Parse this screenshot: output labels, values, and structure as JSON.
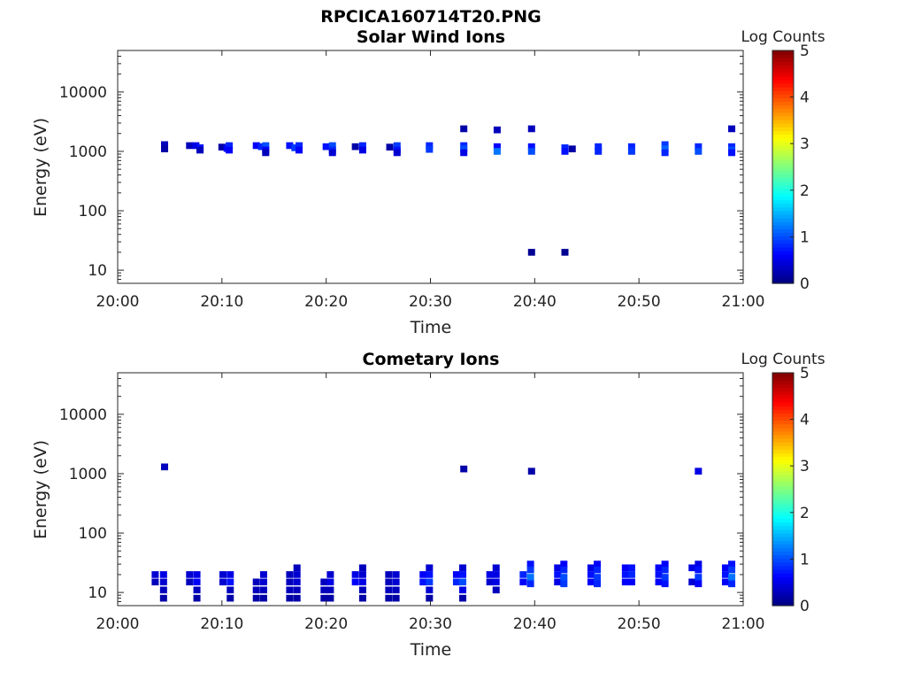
{
  "figure_title": "RPCICA160714T20.PNG",
  "colormap": [
    "#00007f",
    "#0000ff",
    "#007fff",
    "#00ffff",
    "#7fff7f",
    "#ffff00",
    "#ff7f00",
    "#ff0000",
    "#7f0000"
  ],
  "chart_data": [
    {
      "type": "heatmap",
      "title": "Solar Wind Ions",
      "xlabel": "Time",
      "ylabel": "Energy (eV)",
      "x_ticks": [
        "20:00",
        "20:10",
        "20:20",
        "20:30",
        "20:40",
        "20:50",
        "21:00"
      ],
      "y_ticks": [
        "10",
        "100",
        "1000",
        "10000"
      ],
      "y_scale": "log",
      "ylim": [
        6,
        50000
      ],
      "xlim_minutes": [
        0,
        60
      ],
      "grid": false,
      "colorbar": {
        "label": "Log Counts",
        "ticks": [
          "0",
          "1",
          "2",
          "3",
          "4",
          "5"
        ],
        "range": [
          0,
          5
        ]
      },
      "cells": [
        {
          "t": 4.5,
          "e": 1300,
          "v": 0.3
        },
        {
          "t": 4.5,
          "e": 1100,
          "v": 0.2
        },
        {
          "t": 6.9,
          "e": 1250,
          "v": 0.3
        },
        {
          "t": 7.5,
          "e": 1250,
          "v": 0.5
        },
        {
          "t": 7.9,
          "e": 1150,
          "v": 0.7
        },
        {
          "t": 7.9,
          "e": 1050,
          "v": 0.3
        },
        {
          "t": 10.0,
          "e": 1180,
          "v": 0.2
        },
        {
          "t": 10.5,
          "e": 1120,
          "v": 0.6
        },
        {
          "t": 10.7,
          "e": 1250,
          "v": 0.8
        },
        {
          "t": 10.7,
          "e": 1050,
          "v": 0.6
        },
        {
          "t": 13.3,
          "e": 1250,
          "v": 0.6
        },
        {
          "t": 13.8,
          "e": 1200,
          "v": 0.8
        },
        {
          "t": 14.2,
          "e": 1250,
          "v": 1.0
        },
        {
          "t": 14.2,
          "e": 1050,
          "v": 0.6
        },
        {
          "t": 14.2,
          "e": 950,
          "v": 0.3
        },
        {
          "t": 16.5,
          "e": 1250,
          "v": 0.7
        },
        {
          "t": 17.0,
          "e": 1150,
          "v": 0.9
        },
        {
          "t": 17.4,
          "e": 1250,
          "v": 0.8
        },
        {
          "t": 17.4,
          "e": 1050,
          "v": 0.6
        },
        {
          "t": 20.0,
          "e": 1200,
          "v": 0.7
        },
        {
          "t": 20.6,
          "e": 1250,
          "v": 1.0
        },
        {
          "t": 20.6,
          "e": 1050,
          "v": 0.8
        },
        {
          "t": 20.6,
          "e": 950,
          "v": 0.4
        },
        {
          "t": 22.8,
          "e": 1200,
          "v": 0.2
        },
        {
          "t": 23.5,
          "e": 1250,
          "v": 0.8
        },
        {
          "t": 23.5,
          "e": 1050,
          "v": 0.5
        },
        {
          "t": 26.1,
          "e": 1180,
          "v": 0.2
        },
        {
          "t": 26.8,
          "e": 1250,
          "v": 0.9
        },
        {
          "t": 26.8,
          "e": 1050,
          "v": 0.7
        },
        {
          "t": 26.8,
          "e": 950,
          "v": 0.4
        },
        {
          "t": 29.9,
          "e": 1250,
          "v": 0.8
        },
        {
          "t": 29.9,
          "e": 1080,
          "v": 0.9
        },
        {
          "t": 33.2,
          "e": 2400,
          "v": 0.2
        },
        {
          "t": 33.2,
          "e": 1250,
          "v": 0.8
        },
        {
          "t": 33.2,
          "e": 1100,
          "v": 1.0
        },
        {
          "t": 33.2,
          "e": 950,
          "v": 0.5
        },
        {
          "t": 36.4,
          "e": 2300,
          "v": 0.3
        },
        {
          "t": 36.4,
          "e": 1200,
          "v": 0.6
        },
        {
          "t": 36.4,
          "e": 1000,
          "v": 1.2
        },
        {
          "t": 39.7,
          "e": 2400,
          "v": 0.3
        },
        {
          "t": 39.7,
          "e": 1200,
          "v": 0.7
        },
        {
          "t": 39.7,
          "e": 1000,
          "v": 1.0
        },
        {
          "t": 39.7,
          "e": 20,
          "v": 0.1
        },
        {
          "t": 42.9,
          "e": 1150,
          "v": 0.8
        },
        {
          "t": 42.9,
          "e": 1000,
          "v": 0.7
        },
        {
          "t": 43.6,
          "e": 1100,
          "v": 0.2
        },
        {
          "t": 42.9,
          "e": 20,
          "v": 0.1
        },
        {
          "t": 46.1,
          "e": 1200,
          "v": 0.8
        },
        {
          "t": 46.1,
          "e": 1000,
          "v": 0.8
        },
        {
          "t": 49.3,
          "e": 1200,
          "v": 0.8
        },
        {
          "t": 49.3,
          "e": 1000,
          "v": 0.9
        },
        {
          "t": 52.5,
          "e": 1300,
          "v": 0.9
        },
        {
          "t": 52.5,
          "e": 1100,
          "v": 1.1
        },
        {
          "t": 52.5,
          "e": 950,
          "v": 0.8
        },
        {
          "t": 55.7,
          "e": 1200,
          "v": 0.8
        },
        {
          "t": 55.7,
          "e": 1000,
          "v": 1.0
        },
        {
          "t": 58.9,
          "e": 2400,
          "v": 0.3
        },
        {
          "t": 58.9,
          "e": 1200,
          "v": 0.8
        },
        {
          "t": 58.9,
          "e": 1050,
          "v": 1.0
        },
        {
          "t": 58.9,
          "e": 950,
          "v": 0.7
        }
      ]
    },
    {
      "type": "heatmap",
      "title": "Cometary Ions",
      "xlabel": "Time",
      "ylabel": "Energy (eV)",
      "x_ticks": [
        "20:00",
        "20:10",
        "20:20",
        "20:30",
        "20:40",
        "20:50",
        "21:00"
      ],
      "y_ticks": [
        "10",
        "100",
        "1000",
        "10000"
      ],
      "y_scale": "log",
      "ylim": [
        6,
        50000
      ],
      "xlim_minutes": [
        0,
        60
      ],
      "grid": false,
      "colorbar": {
        "label": "Log Counts",
        "ticks": [
          "0",
          "1",
          "2",
          "3",
          "4",
          "5"
        ],
        "range": [
          0,
          5
        ]
      },
      "cells": [
        {
          "t": 4.5,
          "e": 1300,
          "v": 0.3
        },
        {
          "t": 33.2,
          "e": 1200,
          "v": 0.2
        },
        {
          "t": 39.7,
          "e": 1100,
          "v": 0.2
        },
        {
          "t": 55.7,
          "e": 1100,
          "v": 0.5
        },
        {
          "t": 3.6,
          "e": 20,
          "v": 0.4
        },
        {
          "t": 3.6,
          "e": 15,
          "v": 0.3
        },
        {
          "t": 4.4,
          "e": 20,
          "v": 0.5
        },
        {
          "t": 4.4,
          "e": 15,
          "v": 0.4
        },
        {
          "t": 4.4,
          "e": 11,
          "v": 0.3
        },
        {
          "t": 4.4,
          "e": 8,
          "v": 0.2
        },
        {
          "t": 6.9,
          "e": 20,
          "v": 0.4
        },
        {
          "t": 6.9,
          "e": 15,
          "v": 0.3
        },
        {
          "t": 7.6,
          "e": 20,
          "v": 0.5
        },
        {
          "t": 7.6,
          "e": 15,
          "v": 0.6
        },
        {
          "t": 7.6,
          "e": 11,
          "v": 0.3
        },
        {
          "t": 7.6,
          "e": 8,
          "v": 0.2
        },
        {
          "t": 10.1,
          "e": 20,
          "v": 0.4
        },
        {
          "t": 10.1,
          "e": 15,
          "v": 0.4
        },
        {
          "t": 10.8,
          "e": 20,
          "v": 0.5
        },
        {
          "t": 10.8,
          "e": 15,
          "v": 0.7
        },
        {
          "t": 10.8,
          "e": 11,
          "v": 0.3
        },
        {
          "t": 10.8,
          "e": 8,
          "v": 0.2
        },
        {
          "t": 13.3,
          "e": 15,
          "v": 0.3
        },
        {
          "t": 13.3,
          "e": 11,
          "v": 0.3
        },
        {
          "t": 13.3,
          "e": 8,
          "v": 0.2
        },
        {
          "t": 14.0,
          "e": 20,
          "v": 0.4
        },
        {
          "t": 14.0,
          "e": 15,
          "v": 0.4
        },
        {
          "t": 14.0,
          "e": 11,
          "v": 0.3
        },
        {
          "t": 14.0,
          "e": 8,
          "v": 0.2
        },
        {
          "t": 16.5,
          "e": 20,
          "v": 0.3
        },
        {
          "t": 16.5,
          "e": 15,
          "v": 0.3
        },
        {
          "t": 16.5,
          "e": 11,
          "v": 0.3
        },
        {
          "t": 16.5,
          "e": 8,
          "v": 0.2
        },
        {
          "t": 17.2,
          "e": 26,
          "v": 0.3
        },
        {
          "t": 17.2,
          "e": 20,
          "v": 0.4
        },
        {
          "t": 17.2,
          "e": 15,
          "v": 0.4
        },
        {
          "t": 17.2,
          "e": 11,
          "v": 0.3
        },
        {
          "t": 17.2,
          "e": 8,
          "v": 0.2
        },
        {
          "t": 19.8,
          "e": 15,
          "v": 0.3
        },
        {
          "t": 19.8,
          "e": 11,
          "v": 0.3
        },
        {
          "t": 19.8,
          "e": 8,
          "v": 0.2
        },
        {
          "t": 20.4,
          "e": 20,
          "v": 0.4
        },
        {
          "t": 20.4,
          "e": 15,
          "v": 0.5
        },
        {
          "t": 20.4,
          "e": 11,
          "v": 0.3
        },
        {
          "t": 20.4,
          "e": 8,
          "v": 0.2
        },
        {
          "t": 22.8,
          "e": 20,
          "v": 0.5
        },
        {
          "t": 22.8,
          "e": 15,
          "v": 0.6
        },
        {
          "t": 23.5,
          "e": 26,
          "v": 0.3
        },
        {
          "t": 23.5,
          "e": 20,
          "v": 0.4
        },
        {
          "t": 23.5,
          "e": 15,
          "v": 0.5
        },
        {
          "t": 23.5,
          "e": 11,
          "v": 0.3
        },
        {
          "t": 23.5,
          "e": 8,
          "v": 0.2
        },
        {
          "t": 26.0,
          "e": 20,
          "v": 0.3
        },
        {
          "t": 26.0,
          "e": 15,
          "v": 0.3
        },
        {
          "t": 26.0,
          "e": 11,
          "v": 0.3
        },
        {
          "t": 26.0,
          "e": 8,
          "v": 0.2
        },
        {
          "t": 26.7,
          "e": 20,
          "v": 0.4
        },
        {
          "t": 26.7,
          "e": 15,
          "v": 0.4
        },
        {
          "t": 26.7,
          "e": 11,
          "v": 0.3
        },
        {
          "t": 26.7,
          "e": 8,
          "v": 0.2
        },
        {
          "t": 29.3,
          "e": 20,
          "v": 0.6
        },
        {
          "t": 29.3,
          "e": 15,
          "v": 0.7
        },
        {
          "t": 29.9,
          "e": 26,
          "v": 0.4
        },
        {
          "t": 29.9,
          "e": 20,
          "v": 0.7
        },
        {
          "t": 29.9,
          "e": 15,
          "v": 0.9
        },
        {
          "t": 29.9,
          "e": 11,
          "v": 0.4
        },
        {
          "t": 29.9,
          "e": 8,
          "v": 0.2
        },
        {
          "t": 32.5,
          "e": 20,
          "v": 0.6
        },
        {
          "t": 32.5,
          "e": 15,
          "v": 0.8
        },
        {
          "t": 33.1,
          "e": 26,
          "v": 0.4
        },
        {
          "t": 33.1,
          "e": 20,
          "v": 0.7
        },
        {
          "t": 33.1,
          "e": 15,
          "v": 1.0
        },
        {
          "t": 33.1,
          "e": 11,
          "v": 0.5
        },
        {
          "t": 33.1,
          "e": 8,
          "v": 0.2
        },
        {
          "t": 35.7,
          "e": 20,
          "v": 0.5
        },
        {
          "t": 35.7,
          "e": 15,
          "v": 0.4
        },
        {
          "t": 36.3,
          "e": 26,
          "v": 0.4
        },
        {
          "t": 36.3,
          "e": 20,
          "v": 0.5
        },
        {
          "t": 36.3,
          "e": 15,
          "v": 0.5
        },
        {
          "t": 36.3,
          "e": 11,
          "v": 0.3
        },
        {
          "t": 38.9,
          "e": 20,
          "v": 0.8
        },
        {
          "t": 38.9,
          "e": 15,
          "v": 0.6
        },
        {
          "t": 39.6,
          "e": 30,
          "v": 0.7
        },
        {
          "t": 39.6,
          "e": 24,
          "v": 0.9
        },
        {
          "t": 39.6,
          "e": 18,
          "v": 1.2
        },
        {
          "t": 39.6,
          "e": 14,
          "v": 0.8
        },
        {
          "t": 42.2,
          "e": 26,
          "v": 0.5
        },
        {
          "t": 42.2,
          "e": 20,
          "v": 0.7
        },
        {
          "t": 42.2,
          "e": 15,
          "v": 0.5
        },
        {
          "t": 42.8,
          "e": 30,
          "v": 0.6
        },
        {
          "t": 42.8,
          "e": 24,
          "v": 0.8
        },
        {
          "t": 42.8,
          "e": 18,
          "v": 1.0
        },
        {
          "t": 42.8,
          "e": 14,
          "v": 0.9
        },
        {
          "t": 45.4,
          "e": 26,
          "v": 0.5
        },
        {
          "t": 45.4,
          "e": 20,
          "v": 0.7
        },
        {
          "t": 45.4,
          "e": 15,
          "v": 0.6
        },
        {
          "t": 46.0,
          "e": 30,
          "v": 0.6
        },
        {
          "t": 46.0,
          "e": 24,
          "v": 0.8
        },
        {
          "t": 46.0,
          "e": 18,
          "v": 0.9
        },
        {
          "t": 46.0,
          "e": 14,
          "v": 0.8
        },
        {
          "t": 48.7,
          "e": 26,
          "v": 0.6
        },
        {
          "t": 48.7,
          "e": 20,
          "v": 0.7
        },
        {
          "t": 48.7,
          "e": 15,
          "v": 0.6
        },
        {
          "t": 49.3,
          "e": 26,
          "v": 0.7
        },
        {
          "t": 49.3,
          "e": 20,
          "v": 0.8
        },
        {
          "t": 49.3,
          "e": 15,
          "v": 0.6
        },
        {
          "t": 51.9,
          "e": 26,
          "v": 0.6
        },
        {
          "t": 51.9,
          "e": 20,
          "v": 0.7
        },
        {
          "t": 51.9,
          "e": 15,
          "v": 0.6
        },
        {
          "t": 52.5,
          "e": 30,
          "v": 0.6
        },
        {
          "t": 52.5,
          "e": 24,
          "v": 0.8
        },
        {
          "t": 52.5,
          "e": 18,
          "v": 0.9
        },
        {
          "t": 52.5,
          "e": 14,
          "v": 0.7
        },
        {
          "t": 55.1,
          "e": 26,
          "v": 0.5
        },
        {
          "t": 55.1,
          "e": 15,
          "v": 0.4
        },
        {
          "t": 55.7,
          "e": 30,
          "v": 0.5
        },
        {
          "t": 55.7,
          "e": 24,
          "v": 0.7
        },
        {
          "t": 55.7,
          "e": 18,
          "v": 0.9
        },
        {
          "t": 55.7,
          "e": 14,
          "v": 0.6
        },
        {
          "t": 58.3,
          "e": 26,
          "v": 0.6
        },
        {
          "t": 58.3,
          "e": 20,
          "v": 0.7
        },
        {
          "t": 58.3,
          "e": 15,
          "v": 0.6
        },
        {
          "t": 58.9,
          "e": 30,
          "v": 0.7
        },
        {
          "t": 58.9,
          "e": 24,
          "v": 0.9
        },
        {
          "t": 58.9,
          "e": 18,
          "v": 1.2
        },
        {
          "t": 58.9,
          "e": 14,
          "v": 0.8
        }
      ]
    }
  ]
}
